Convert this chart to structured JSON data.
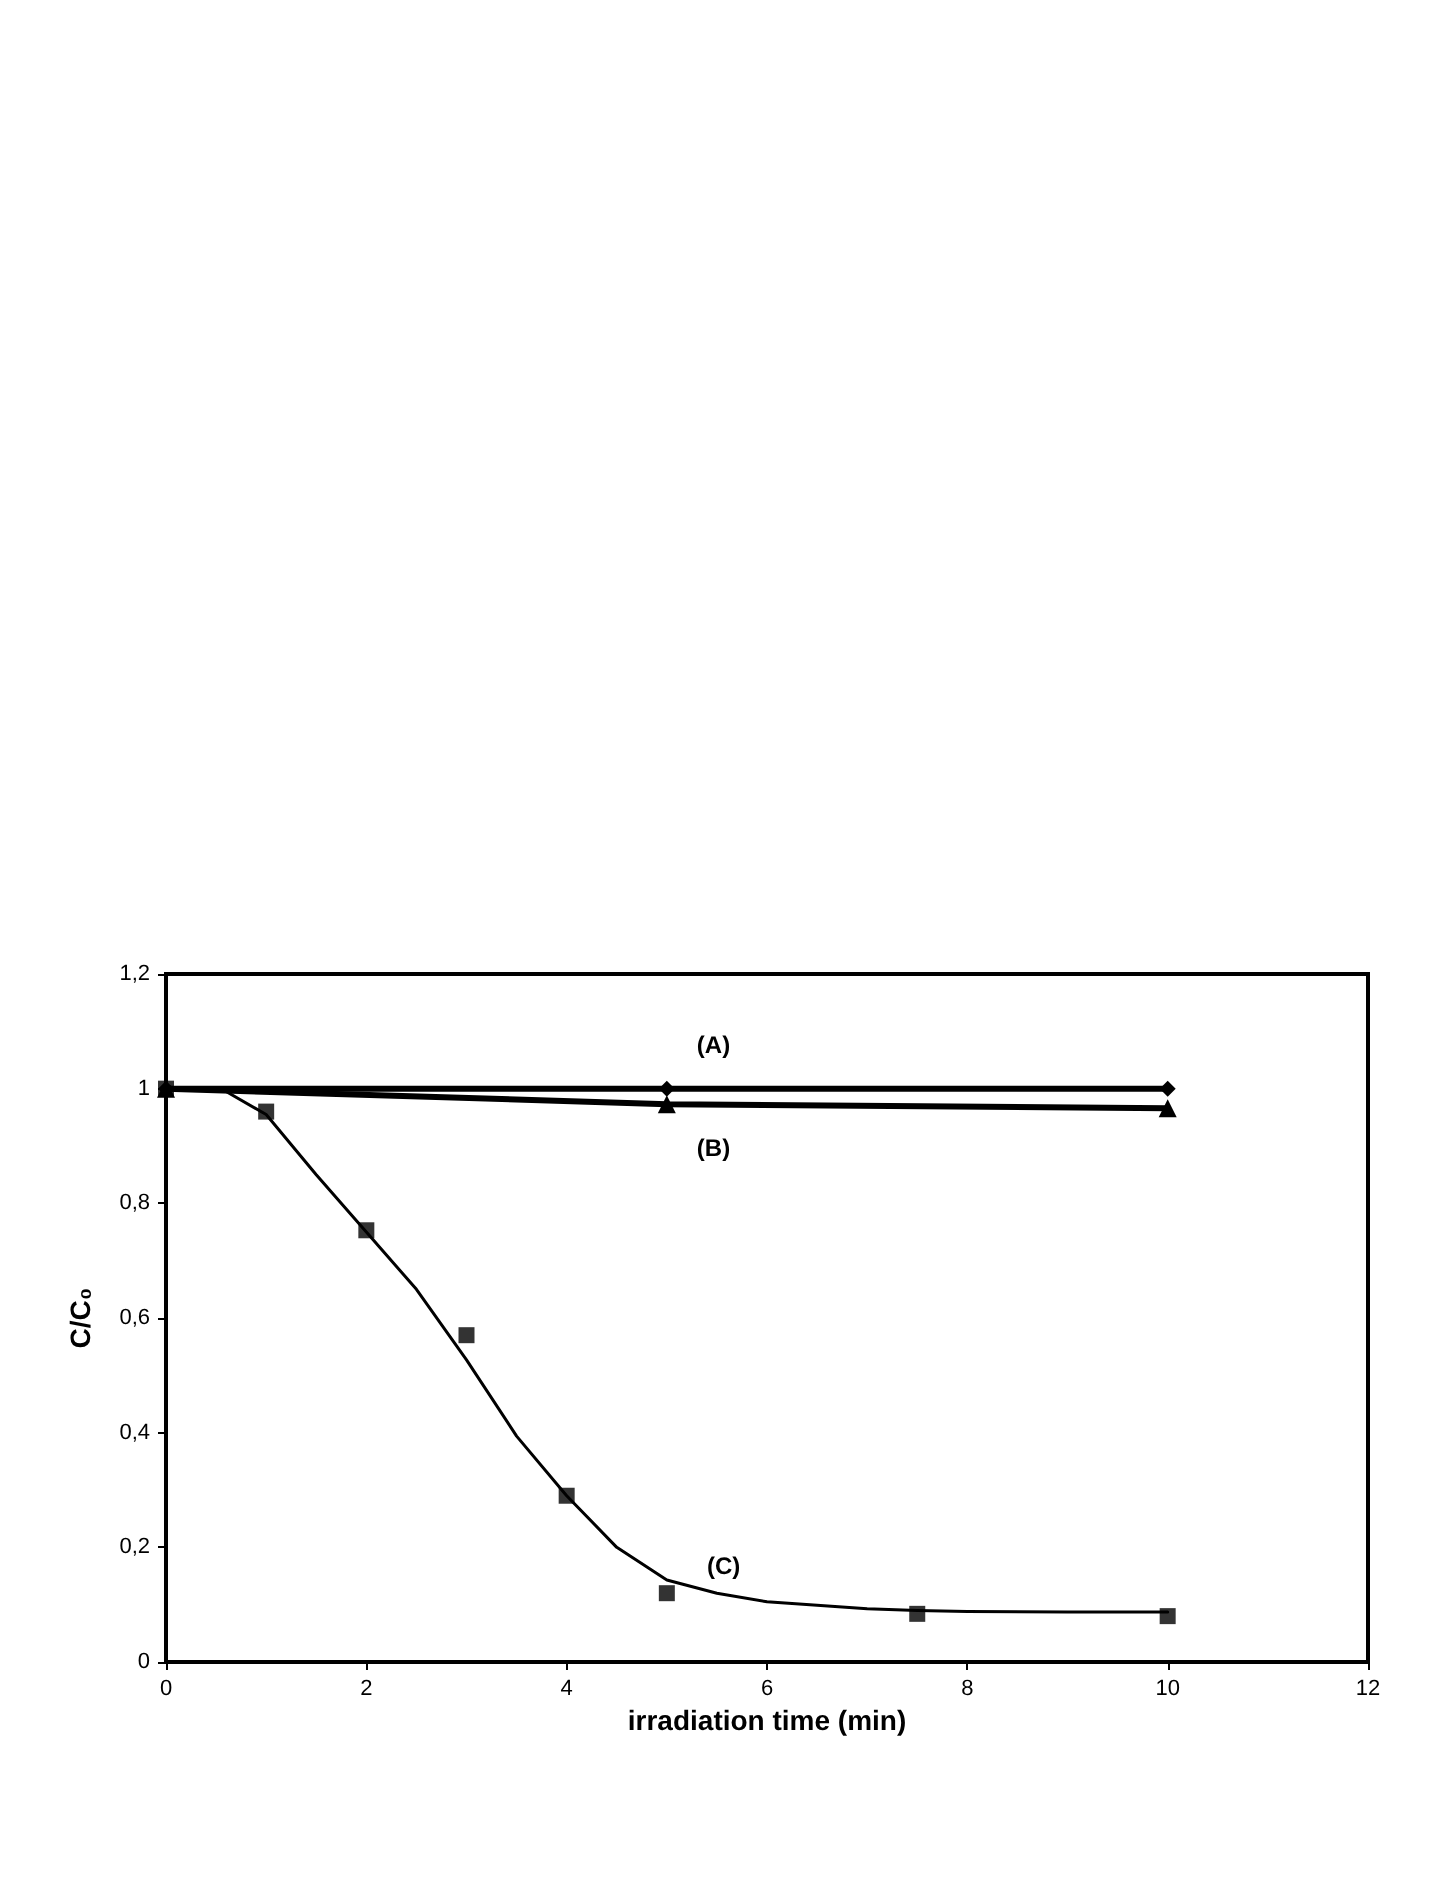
{
  "chart_data": {
    "type": "line",
    "xlabel": "irradiation time (min)",
    "ylabel": "C/C₀",
    "xlim": [
      0,
      12
    ],
    "xticks": [
      0,
      2,
      4,
      6,
      8,
      10,
      12
    ],
    "ylim": [
      0,
      1.2
    ],
    "yticks": [
      {
        "value": 0,
        "label": "0"
      },
      {
        "value": 0.2,
        "label": "0,2"
      },
      {
        "value": 0.4,
        "label": "0,4"
      },
      {
        "value": 0.6,
        "label": "0,6"
      },
      {
        "value": 0.8,
        "label": "0,8"
      },
      {
        "value": 1,
        "label": "1"
      },
      {
        "value": 1.2,
        "label": "1,2"
      }
    ],
    "grid": false,
    "legend": false,
    "series": [
      {
        "name": "(A)",
        "type": "line",
        "color": "#000000",
        "marker": "diamond",
        "x": [
          0,
          5,
          10
        ],
        "values": [
          1,
          1,
          1
        ]
      },
      {
        "name": "(B)",
        "type": "line",
        "color": "#000000",
        "marker": "triangle",
        "x": [
          0,
          5,
          10
        ],
        "values": [
          1,
          0.973,
          0.966
        ]
      },
      {
        "name": "(C)",
        "type": "scatter",
        "color": "#000000",
        "marker": "square",
        "x": [
          0,
          1,
          2,
          3,
          4,
          5,
          7.5,
          10
        ],
        "values": [
          1,
          0.96,
          0.753,
          0.57,
          0.29,
          0.12,
          0.084,
          0.08
        ]
      },
      {
        "type": "line",
        "color": "#000000",
        "marker": "none",
        "x": [
          0,
          0.6,
          1,
          1.5,
          2,
          2.5,
          3,
          3.5,
          4,
          4.5,
          5,
          5.5,
          6,
          7,
          7.5,
          8,
          9,
          10
        ],
        "values": [
          1,
          0.995,
          0.955,
          0.85,
          0.75,
          0.65,
          0.527,
          0.394,
          0.29,
          0.2,
          0.143,
          0.12,
          0.105,
          0.093,
          0.09,
          0.088,
          0.087,
          0.087
        ]
      }
    ]
  }
}
